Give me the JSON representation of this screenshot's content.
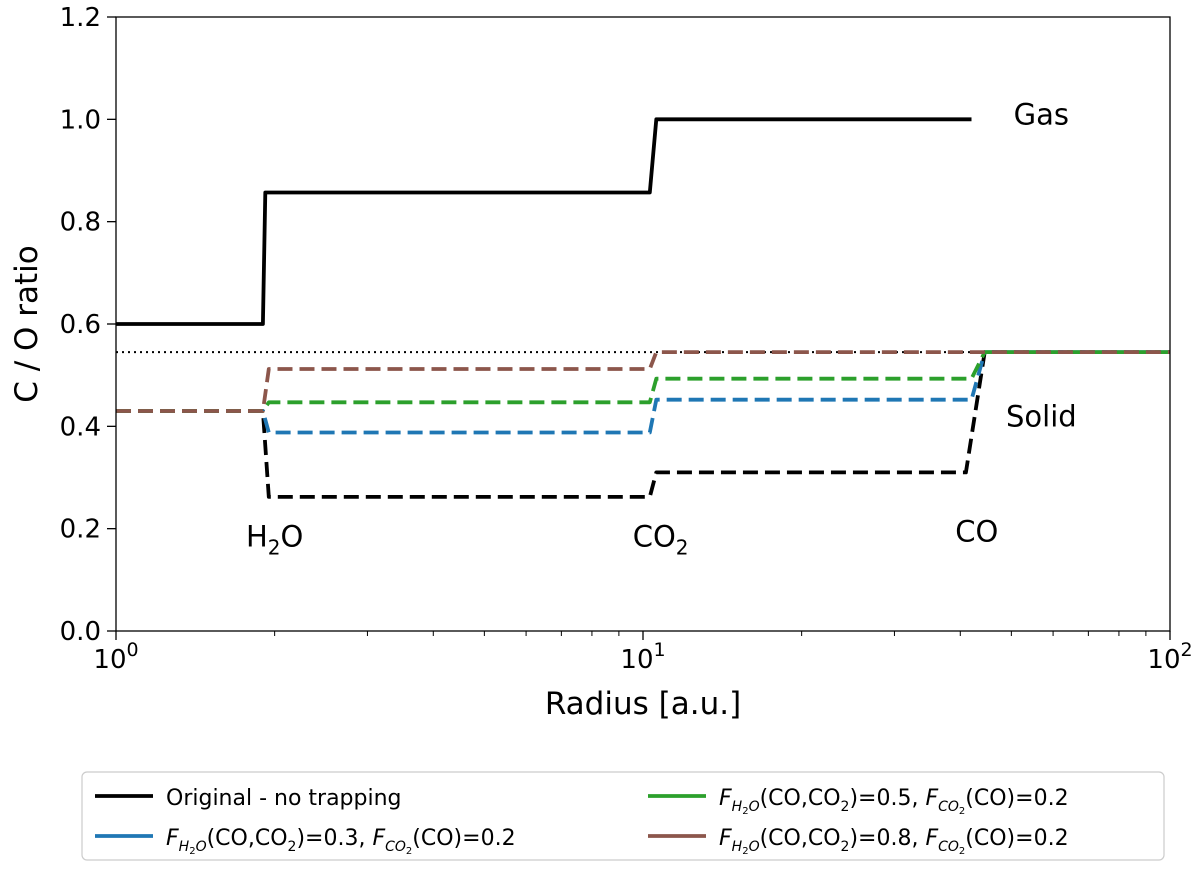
{
  "chart_data": {
    "type": "line",
    "xlabel": "Radius [a.u.]",
    "ylabel": "C / O ratio",
    "xscale": "log",
    "xlim": [
      1,
      100
    ],
    "ylim": [
      0.0,
      1.2
    ],
    "x_ticks": [
      {
        "value": 1,
        "base": "10",
        "exp": "0"
      },
      {
        "value": 10,
        "base": "10",
        "exp": "1"
      },
      {
        "value": 100,
        "base": "10",
        "exp": "2"
      }
    ],
    "y_ticks": [
      {
        "value": 0.0,
        "label": "0.0"
      },
      {
        "value": 0.2,
        "label": "0.2"
      },
      {
        "value": 0.4,
        "label": "0.4"
      },
      {
        "value": 0.6,
        "label": "0.6"
      },
      {
        "value": 0.8,
        "label": "0.8"
      },
      {
        "value": 1.0,
        "label": "1.0"
      },
      {
        "value": 1.2,
        "label": "1.2"
      }
    ],
    "grid": false,
    "reference_line": {
      "y": 0.545,
      "style": "dotted",
      "color": "#000000"
    },
    "series": [
      {
        "name": "Original - no trapping (gas)",
        "color": "#000000",
        "dash": "solid",
        "x": [
          1,
          1.9,
          1.92,
          10.3,
          10.6,
          42
        ],
        "y": [
          0.6,
          0.6,
          0.857,
          0.857,
          1.0,
          1.0
        ]
      },
      {
        "name": "Original - no trapping (solid)",
        "color": "#000000",
        "dash": "dashed",
        "x": [
          1,
          1.9,
          1.95,
          10.3,
          10.6,
          41,
          44.5,
          100
        ],
        "y": [
          0.43,
          0.43,
          0.262,
          0.262,
          0.31,
          0.31,
          0.545,
          0.545
        ]
      },
      {
        "name": "F_H2O(CO,CO2)=0.3, F_CO2(CO)=0.2",
        "color": "#1f77b4",
        "dash": "dashed",
        "x": [
          1,
          1.9,
          1.95,
          10.3,
          10.6,
          42,
          44.5,
          100
        ],
        "y": [
          0.43,
          0.43,
          0.388,
          0.388,
          0.452,
          0.452,
          0.545,
          0.545
        ]
      },
      {
        "name": "F_H2O(CO,CO2)=0.5, F_CO2(CO)=0.2",
        "color": "#2ca02c",
        "dash": "dashed",
        "x": [
          1,
          1.9,
          1.95,
          10.3,
          10.6,
          42,
          44.5,
          100
        ],
        "y": [
          0.43,
          0.43,
          0.447,
          0.447,
          0.493,
          0.493,
          0.545,
          0.545
        ]
      },
      {
        "name": "F_H2O(CO,CO2)=0.8, F_CO2(CO)=0.2",
        "color": "#8c564b",
        "dash": "dashed",
        "x": [
          1,
          1.9,
          1.95,
          10.3,
          10.6,
          42,
          44.5,
          100
        ],
        "y": [
          0.43,
          0.43,
          0.512,
          0.512,
          0.545,
          0.545,
          0.545,
          0.545
        ]
      }
    ],
    "annotations": [
      {
        "id": "gas",
        "text": "Gas",
        "x": 57,
        "y": 0.99
      },
      {
        "id": "solid",
        "text": "Solid",
        "x": 57,
        "y": 0.4
      },
      {
        "id": "h2o",
        "base": "H",
        "sub": "2",
        "tail": "O",
        "x": 2.0,
        "y": 0.165
      },
      {
        "id": "co2",
        "base": "CO",
        "sub": "2",
        "tail": "",
        "x": 10.8,
        "y": 0.165
      },
      {
        "id": "co",
        "text": "CO",
        "x": 43,
        "y": 0.175
      }
    ],
    "legend": {
      "placement": "below",
      "entries": [
        {
          "color": "#000000",
          "plain": "Original - no trapping"
        },
        {
          "color": "#2ca02c",
          "f1_value": "=0.5",
          "f2_value": "=0.2"
        },
        {
          "color": "#1f77b4",
          "f1_value": "=0.3",
          "f2_value": "=0.2"
        },
        {
          "color": "#8c564b",
          "f1_value": "=0.8",
          "f2_value": "=0.2"
        }
      ],
      "tokens": {
        "F": "F",
        "h2o_sub_H": "H",
        "h2o_sub_2": "2",
        "h2o_sub_O": "O",
        "arg1_open": "(CO,CO",
        "arg1_sub": "2",
        "arg1_close": ")",
        "sep": ", ",
        "co2_sub_CO": "CO",
        "co2_sub_2": "2",
        "arg2": "(CO)"
      }
    }
  }
}
